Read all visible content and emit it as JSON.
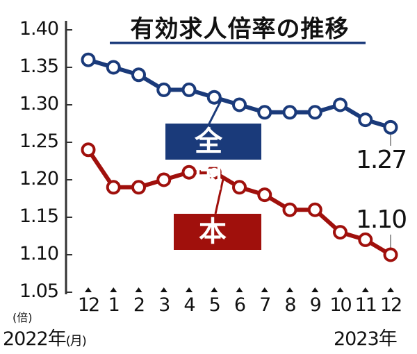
{
  "chart_data": {
    "type": "line",
    "title": "有効求人倍率の推移",
    "ylabel": "(倍)",
    "ylim": [
      1.05,
      1.4
    ],
    "yticks": [
      "1.40",
      "1.35",
      "1.30",
      "1.25",
      "1.20",
      "1.15",
      "1.10",
      "1.05"
    ],
    "categories": [
      "12",
      "1",
      "2",
      "3",
      "4",
      "5",
      "6",
      "7",
      "8",
      "9",
      "10",
      "11",
      "12"
    ],
    "x_year_start": "2022年",
    "x_unit": "(月)",
    "x_year_end": "2023年",
    "grid": false,
    "series": [
      {
        "name": "全国",
        "color": "#1a3a7a",
        "values": [
          1.36,
          1.35,
          1.34,
          1.32,
          1.32,
          1.31,
          1.3,
          1.29,
          1.29,
          1.29,
          1.3,
          1.28,
          1.27
        ],
        "end_label": "1.27"
      },
      {
        "name": "本県",
        "color": "#a0100c",
        "values": [
          1.24,
          1.19,
          1.19,
          1.2,
          1.21,
          1.21,
          1.19,
          1.18,
          1.16,
          1.16,
          1.13,
          1.12,
          1.1
        ],
        "end_label": "1.10"
      }
    ]
  }
}
